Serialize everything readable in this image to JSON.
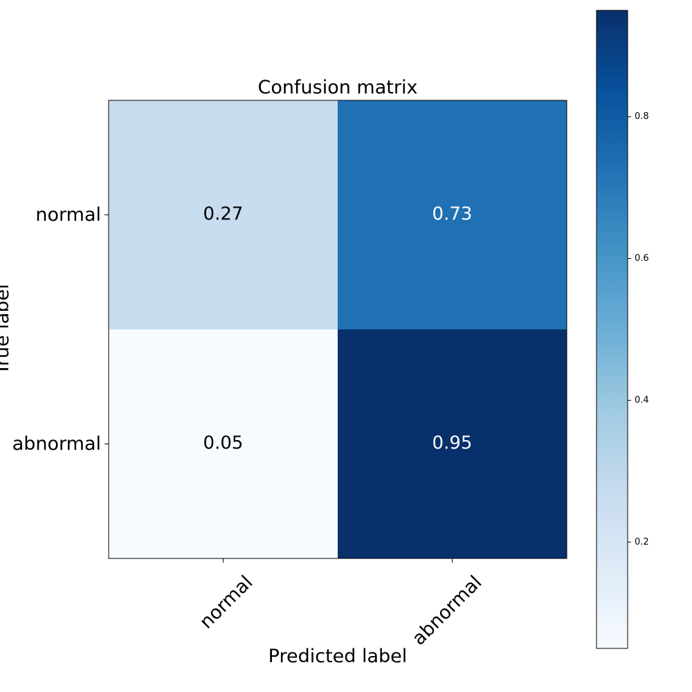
{
  "chart_data": {
    "type": "heatmap",
    "title": "Confusion matrix",
    "xlabel": "Predicted label",
    "ylabel": "True label",
    "x_categories": [
      "normal",
      "abnormal"
    ],
    "y_categories": [
      "normal",
      "abnormal"
    ],
    "values": [
      [
        0.27,
        0.73
      ],
      [
        0.05,
        0.95
      ]
    ],
    "value_labels": [
      [
        "0.27",
        "0.73"
      ],
      [
        "0.05",
        "0.95"
      ]
    ],
    "colormap": "Blues",
    "colorbar": {
      "range": [
        0.05,
        0.95
      ],
      "ticks": [
        0.2,
        0.4,
        0.6,
        0.8
      ],
      "tick_labels": [
        "0.2",
        "0.4",
        "0.6",
        "0.8"
      ]
    },
    "colors": {
      "low": "#f7fbff",
      "high": "#08306b",
      "text_dark": "#000000",
      "text_light": "#ffffff"
    }
  }
}
